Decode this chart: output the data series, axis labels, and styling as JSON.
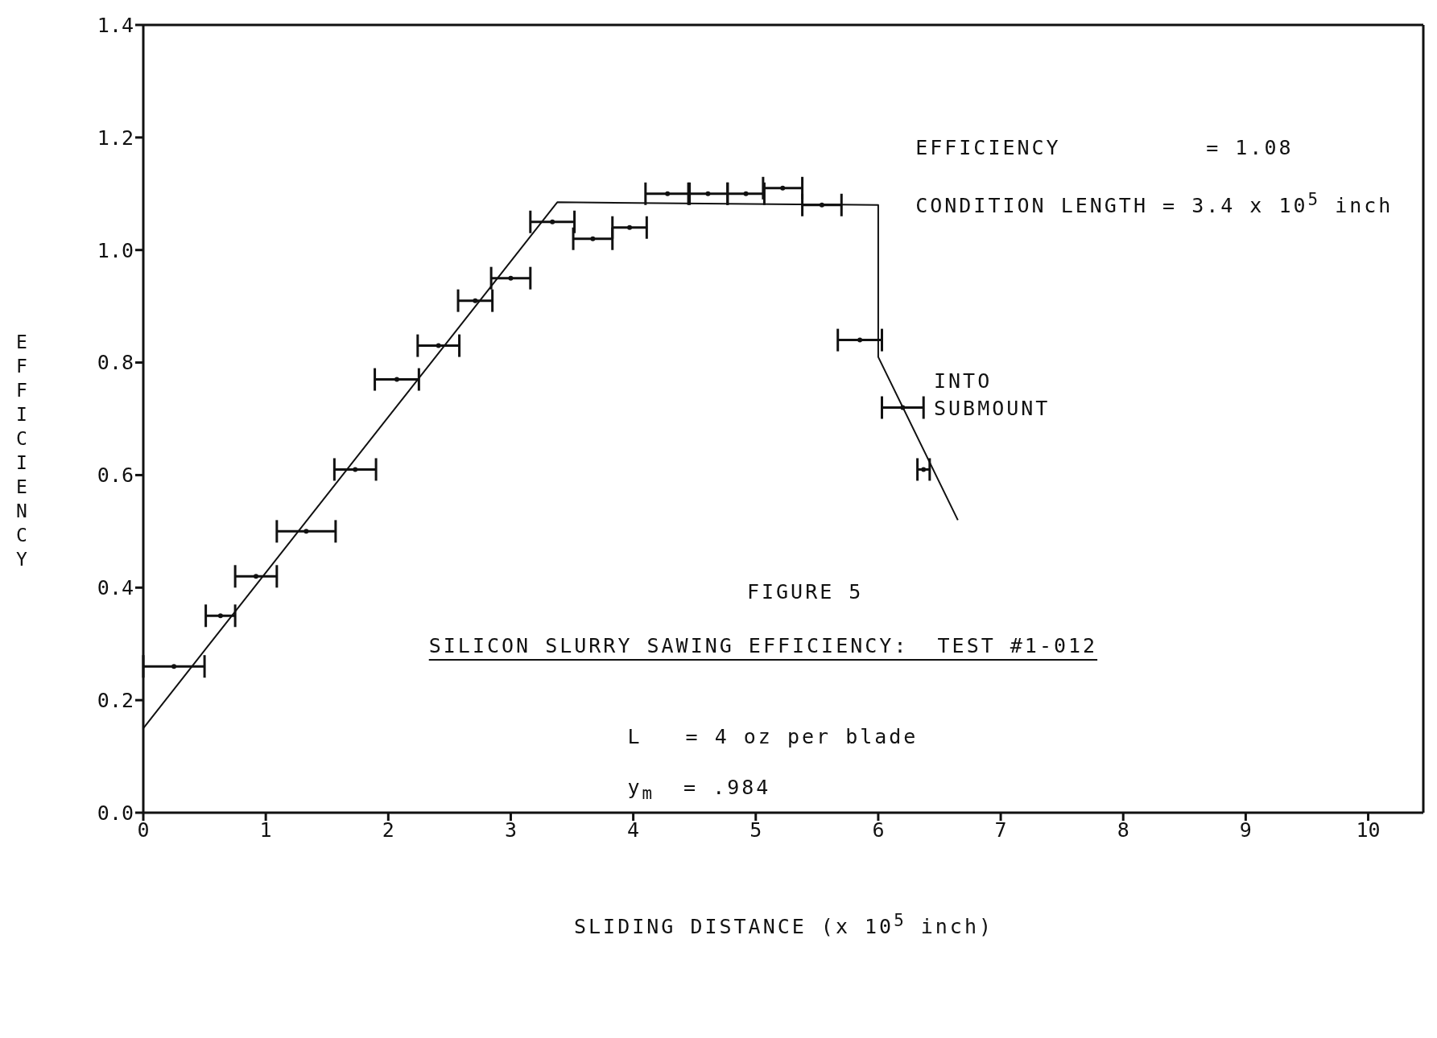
{
  "chart_data": {
    "type": "scatter",
    "title": "FIGURE 5",
    "subtitle": "SILICON SLURRY SAWING EFFICIENCY:  TEST #1-012",
    "xlabel": "SLIDING DISTANCE (x 10$^{5}$ inch)",
    "ylabel": "EFFICIENCY",
    "annotations": [
      "EFFICIENCY          = 1.08",
      "CONDITION LENGTH = 3.4 x 10$^{5}$ inch",
      "INTO\nSUBMOUNT",
      "L   = 4 oz per blade",
      "y$_{m}$  = .984"
    ],
    "x": [
      0.25,
      0.63,
      0.92,
      1.33,
      1.73,
      2.07,
      2.41,
      2.71,
      3.0,
      3.34,
      3.67,
      3.97,
      4.28,
      4.61,
      4.92,
      5.22,
      5.54,
      5.85,
      6.2,
      6.37
    ],
    "values": [
      0.26,
      0.35,
      0.42,
      0.5,
      0.61,
      0.77,
      0.83,
      0.91,
      0.95,
      1.05,
      1.02,
      1.04,
      1.1,
      1.1,
      1.1,
      1.11,
      1.08,
      0.84,
      0.72,
      0.61
    ],
    "xerrors": [
      0.25,
      0.12,
      0.17,
      0.24,
      0.17,
      0.18,
      0.17,
      0.14,
      0.16,
      0.18,
      0.16,
      0.14,
      0.18,
      0.16,
      0.15,
      0.16,
      0.16,
      0.18,
      0.17,
      0.05
    ],
    "color": "#111111",
    "series": [
      {
        "type": "line",
        "color": "#111111",
        "x": [
          0,
          3.38,
          6.0,
          6.0,
          6.65
        ],
        "values": [
          0.15,
          1.085,
          1.08,
          0.81,
          0.52
        ]
      }
    ],
    "xlim": [
      0,
      10.45
    ],
    "xticks": [
      0,
      1,
      2,
      3,
      4,
      5,
      6,
      7,
      8,
      9,
      10
    ],
    "ylim": [
      0,
      1.4
    ],
    "yticks": [
      {
        "value": 0,
        "label": "0.0"
      },
      {
        "value": 0.2,
        "label": "0.2"
      },
      {
        "value": 0.4,
        "label": "0.4"
      },
      {
        "value": 0.6,
        "label": "0.6"
      },
      {
        "value": 0.8,
        "label": "0.8"
      },
      {
        "value": 1,
        "label": "1.0"
      },
      {
        "value": 1.2,
        "label": "1.2"
      },
      {
        "value": 1.4,
        "label": "1.4"
      }
    ]
  }
}
